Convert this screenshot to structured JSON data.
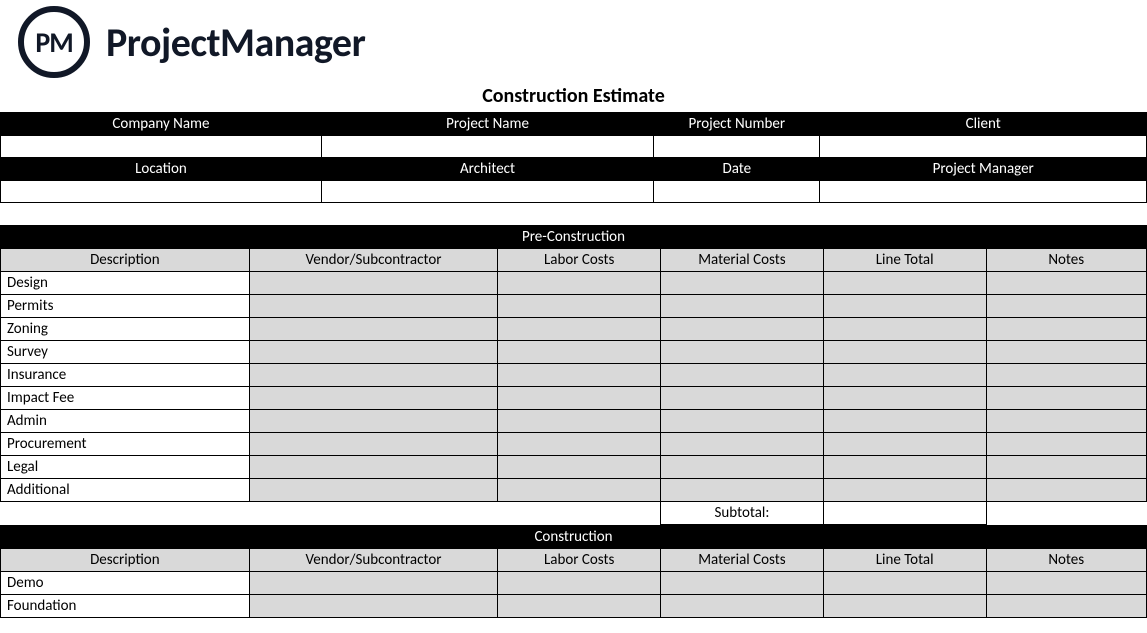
{
  "brand": {
    "logo_initials": "PM",
    "logo_text": "ProjectManager"
  },
  "doc_title": "Construction Estimate",
  "info_row1": {
    "headers": [
      "Company Name",
      "Project Name",
      "Project Number",
      "Client"
    ],
    "values": [
      "",
      "",
      "",
      ""
    ]
  },
  "info_row2": {
    "headers": [
      "Location",
      "Architect",
      "Date",
      "Project Manager"
    ],
    "values": [
      "",
      "",
      "",
      ""
    ]
  },
  "sections": [
    {
      "title": "Pre-Construction",
      "columns": [
        "Description",
        "Vendor/Subcontractor",
        "Labor Costs",
        "Material Costs",
        "Line Total",
        "Notes"
      ],
      "rows": [
        {
          "desc": "Design",
          "vendor": "",
          "labor": "",
          "material": "",
          "total": "",
          "notes": ""
        },
        {
          "desc": "Permits",
          "vendor": "",
          "labor": "",
          "material": "",
          "total": "",
          "notes": ""
        },
        {
          "desc": "Zoning",
          "vendor": "",
          "labor": "",
          "material": "",
          "total": "",
          "notes": ""
        },
        {
          "desc": "Survey",
          "vendor": "",
          "labor": "",
          "material": "",
          "total": "",
          "notes": ""
        },
        {
          "desc": "Insurance",
          "vendor": "",
          "labor": "",
          "material": "",
          "total": "",
          "notes": ""
        },
        {
          "desc": "Impact Fee",
          "vendor": "",
          "labor": "",
          "material": "",
          "total": "",
          "notes": ""
        },
        {
          "desc": "Admin",
          "vendor": "",
          "labor": "",
          "material": "",
          "total": "",
          "notes": ""
        },
        {
          "desc": "Procurement",
          "vendor": "",
          "labor": "",
          "material": "",
          "total": "",
          "notes": ""
        },
        {
          "desc": "Legal",
          "vendor": "",
          "labor": "",
          "material": "",
          "total": "",
          "notes": ""
        },
        {
          "desc": "Additional",
          "vendor": "",
          "labor": "",
          "material": "",
          "total": "",
          "notes": ""
        }
      ],
      "subtotal_label": "Subtotal:",
      "subtotal_value": ""
    },
    {
      "title": "Construction",
      "columns": [
        "Description",
        "Vendor/Subcontractor",
        "Labor Costs",
        "Material Costs",
        "Line Total",
        "Notes"
      ],
      "rows": [
        {
          "desc": "Demo",
          "vendor": "",
          "labor": "",
          "material": "",
          "total": "",
          "notes": ""
        },
        {
          "desc": "Foundation",
          "vendor": "",
          "labor": "",
          "material": "",
          "total": "",
          "notes": ""
        }
      ]
    }
  ],
  "layout": {
    "info_col_widths_pct": [
      28,
      29,
      14.5,
      28.5
    ],
    "section_col_widths_pct": [
      21.7,
      21.7,
      14.2,
      14.2,
      14.2,
      14.0
    ]
  },
  "colors": {
    "black": "#000000",
    "white": "#ffffff",
    "gray_header": "#d9d9d9",
    "brand_dark": "#111827"
  }
}
